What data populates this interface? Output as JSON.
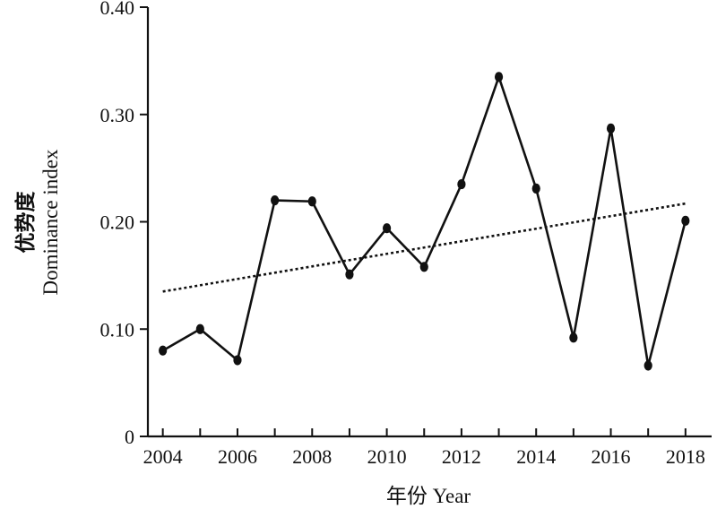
{
  "chart_data": {
    "type": "line",
    "xlabel": "年份 Year",
    "ylabel_cn": "优势度",
    "ylabel_en": "Dominance index",
    "x": [
      2004,
      2005,
      2006,
      2007,
      2008,
      2009,
      2010,
      2011,
      2012,
      2013,
      2014,
      2015,
      2016,
      2017,
      2018
    ],
    "series": [
      {
        "values": [
          0.08,
          0.1,
          0.071,
          0.22,
          0.219,
          0.151,
          0.194,
          0.158,
          0.235,
          0.335,
          0.231,
          0.092,
          0.287,
          0.066,
          0.201
        ]
      }
    ],
    "trendline": {
      "style": "dotted",
      "start": [
        2004,
        0.135
      ],
      "end": [
        2018,
        0.217
      ]
    },
    "xticks": [
      "2004",
      "2006",
      "2008",
      "2010",
      "2012",
      "2014",
      "2016",
      "2018"
    ],
    "yticks": [
      "0",
      "0.10",
      "0.20",
      "0.30",
      "0.40"
    ],
    "xlim": [
      2003.6,
      2018.7
    ],
    "ylim": [
      0,
      0.4
    ],
    "grid": false,
    "legend": "none",
    "colors": {
      "line": "#111111",
      "marker": "#111111",
      "axis": "#111111"
    }
  }
}
